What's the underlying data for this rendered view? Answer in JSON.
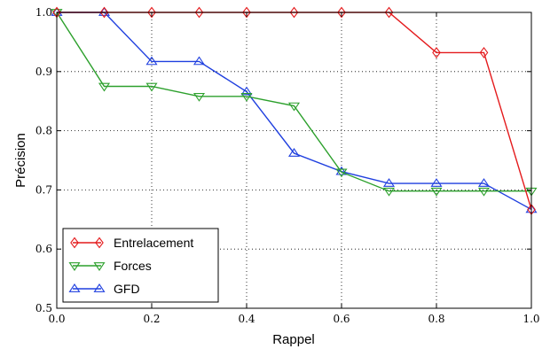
{
  "chart_data": {
    "type": "line",
    "xlabel": "Rappel",
    "ylabel": "Précision",
    "xlim": [
      0.0,
      1.0
    ],
    "ylim": [
      0.5,
      1.0
    ],
    "xticks": [
      0.0,
      0.2,
      0.4,
      0.6,
      0.8,
      1.0
    ],
    "yticks": [
      0.5,
      0.6,
      0.7,
      0.8,
      0.9,
      1.0
    ],
    "xtick_labels": [
      "0.0",
      "0.2",
      "0.4",
      "0.6",
      "0.8",
      "1.0"
    ],
    "ytick_labels": [
      "0.5",
      "0.6",
      "0.7",
      "0.8",
      "0.9",
      "1.0"
    ],
    "grid": true,
    "legend_position": "bottom-left",
    "series": [
      {
        "name": "Entrelacement",
        "color": "#e41a1c",
        "marker": "diamond",
        "x": [
          0.0,
          0.1,
          0.2,
          0.3,
          0.4,
          0.5,
          0.6,
          0.7,
          0.8,
          0.9,
          1.0
        ],
        "y": [
          1.0,
          1.0,
          1.0,
          1.0,
          1.0,
          1.0,
          1.0,
          1.0,
          0.932,
          0.932,
          0.667
        ]
      },
      {
        "name": "Forces",
        "color": "#2ca02c",
        "marker": "triangle-down",
        "x": [
          0.0,
          0.1,
          0.2,
          0.3,
          0.4,
          0.5,
          0.6,
          0.7,
          0.8,
          0.9,
          1.0
        ],
        "y": [
          1.0,
          0.875,
          0.875,
          0.858,
          0.858,
          0.842,
          0.73,
          0.698,
          0.698,
          0.698,
          0.698
        ]
      },
      {
        "name": "GFD",
        "color": "#1f3fdf",
        "marker": "triangle-up",
        "x": [
          0.0,
          0.1,
          0.2,
          0.3,
          0.4,
          0.5,
          0.6,
          0.7,
          0.8,
          0.9,
          1.0
        ],
        "y": [
          1.0,
          1.0,
          0.917,
          0.917,
          0.866,
          0.762,
          0.731,
          0.711,
          0.711,
          0.711,
          0.667
        ]
      }
    ]
  }
}
